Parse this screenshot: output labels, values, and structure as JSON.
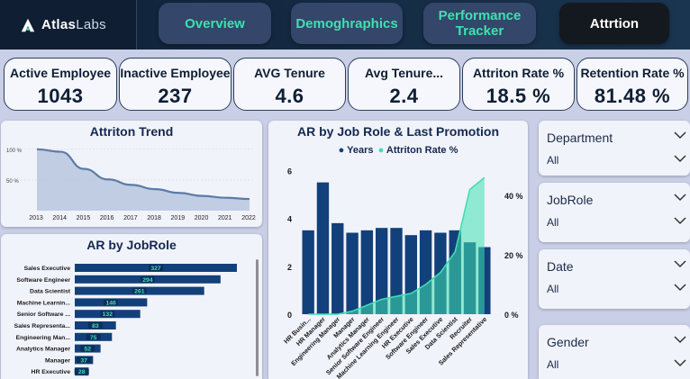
{
  "brand": {
    "name_bold": "Atlas",
    "name_light": "Labs"
  },
  "nav": {
    "tabs": [
      {
        "label": "Overview"
      },
      {
        "label": "Demoghraphics"
      },
      {
        "label": "Performance Tracker"
      },
      {
        "label": "Attrtion"
      }
    ]
  },
  "kpis": [
    {
      "label": "Active Employee",
      "value": "1043"
    },
    {
      "label": "Inactive Employee",
      "value": "237"
    },
    {
      "label": "AVG Tenure",
      "value": "4.6"
    },
    {
      "label": "Avg Tenure...",
      "value": "2.4"
    },
    {
      "label": "Attriton Rate %",
      "value": "18.5 %"
    },
    {
      "label": "Retention Rate %",
      "value": "81.48 %"
    }
  ],
  "attrition_trend": {
    "title": "Attriton Trend"
  },
  "job_role_promo": {
    "title": "AR by Job Role & Last Promotion",
    "legend": [
      {
        "label": "Years",
        "color": "#12407a"
      },
      {
        "label": "Attriton Rate %",
        "color": "#3fe0b0"
      }
    ]
  },
  "ar_jobrole": {
    "title": "AR by JobRole"
  },
  "slicers": [
    {
      "title": "Department",
      "value": "All"
    },
    {
      "title": "JobRole",
      "value": "All"
    },
    {
      "title": "Date",
      "value": "All"
    },
    {
      "title": "Gender",
      "value": "All"
    }
  ],
  "colors": {
    "navy": "#12407a",
    "teal": "#3fe0b0",
    "trend_fill": "#b9c5dd",
    "trend_line": "#5c7ba6"
  },
  "chart_data": [
    {
      "type": "area",
      "title": "Attriton Trend",
      "x": [
        "2013",
        "2014",
        "2015",
        "2016",
        "2017",
        "2018",
        "2019",
        "2020",
        "2021",
        "2022"
      ],
      "y_tick_labels": [
        "100 %",
        "50 %"
      ],
      "series": [
        {
          "values": [
            100,
            96,
            68,
            51,
            42,
            35,
            29,
            24,
            21,
            19
          ]
        }
      ],
      "ylim": [
        0,
        110
      ]
    },
    {
      "type": "bar",
      "title": "AR by Job Role & Last Promotion",
      "categories": [
        "HR Busin...",
        "HR Manager",
        "Engineering Manager",
        "Manager",
        "Analytics Manager",
        "Senior Software Engineer",
        "Machine Learning Engineer",
        "HR Executive",
        "Software Engineer",
        "Sales Executive",
        "Data Scientist",
        "Recruiter",
        "Sales Representative"
      ],
      "series": [
        {
          "name": "Years",
          "values": [
            3.5,
            5.5,
            3.8,
            3.4,
            3.5,
            3.6,
            3.6,
            3.3,
            3.5,
            3.4,
            3.5,
            3.0,
            2.8
          ]
        },
        {
          "name": "Attriton Rate %",
          "values": [
            0,
            0,
            0,
            1,
            3,
            5,
            6,
            7,
            10,
            14,
            21,
            42,
            46
          ]
        }
      ],
      "y_ticks": [
        "0",
        "2",
        "4",
        "6"
      ],
      "y2_ticks": [
        "0 %",
        "20 %",
        "40 %"
      ],
      "ylim": [
        0,
        6.2
      ],
      "y2lim": [
        0,
        50
      ]
    },
    {
      "type": "bar",
      "title": "AR by JobRole",
      "categories": [
        "Sales Executive",
        "Software Engineer",
        "Data Scientist",
        "Machine Learnin...",
        "Senior Software ...",
        "Sales Representa...",
        "Engineering Man...",
        "Analytics Manager",
        "Manager",
        "HR Executive"
      ],
      "values": [
        327,
        294,
        261,
        146,
        132,
        83,
        75,
        52,
        37,
        28
      ]
    }
  ]
}
